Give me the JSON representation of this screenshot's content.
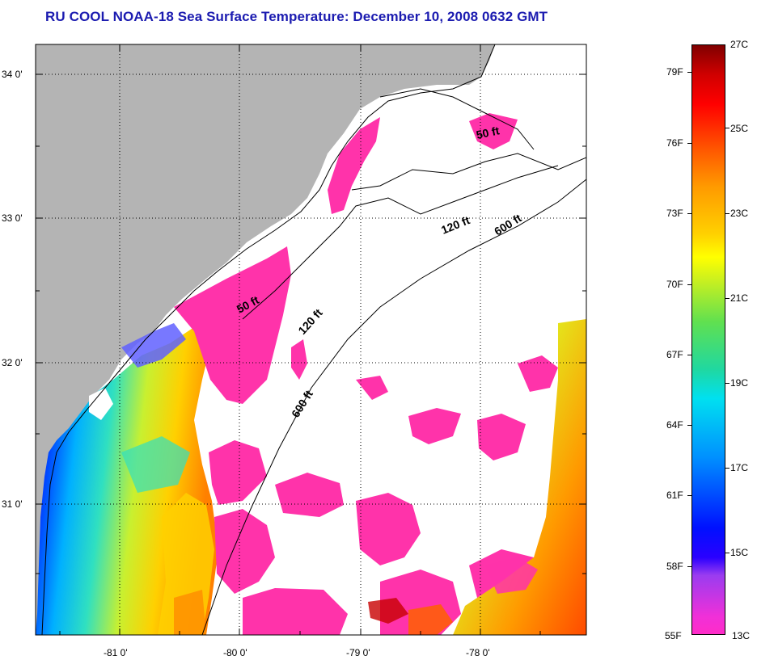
{
  "title": "RU COOL  NOAA-18  Sea Surface Temperature:  December 10, 2008 0632 GMT",
  "map": {
    "lat_ticks": [
      "34 0'",
      "33 0'",
      "32 0'",
      "31 0'"
    ],
    "lon_ticks": [
      "-81 0'",
      "-80 0'",
      "-79 0'",
      "-78 0'"
    ],
    "isobaths": [
      "50 ft",
      "50 ft",
      "120 ft",
      "120 ft",
      "600 ft",
      "600 ft"
    ]
  },
  "colorbar": {
    "fahrenheit": [
      "79F",
      "76F",
      "73F",
      "70F",
      "67F",
      "64F",
      "61F",
      "58F",
      "55F"
    ],
    "celsius": [
      "27C",
      "25C",
      "23C",
      "21C",
      "19C",
      "17C",
      "15C",
      "13C"
    ]
  },
  "colors": {
    "land": "#b4b4b4",
    "cloud": "#ffffff",
    "title": "#1b1bb0",
    "cold_magenta": "#ff33aa"
  }
}
